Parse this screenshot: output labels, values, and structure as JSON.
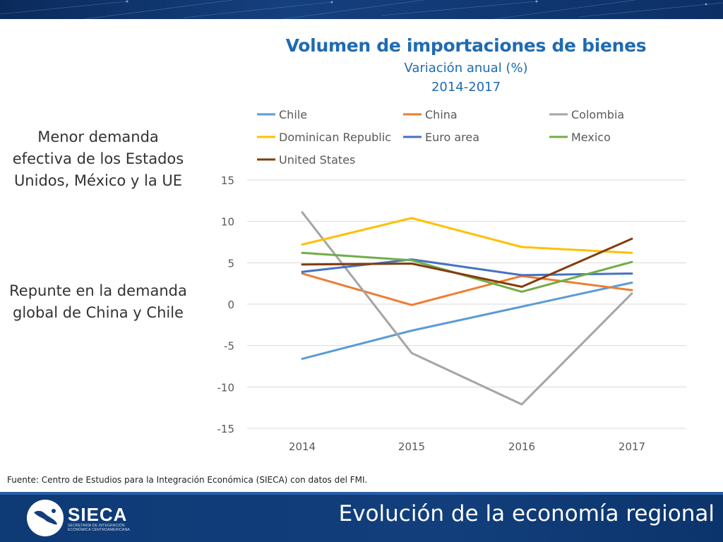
{
  "slide": {
    "title": "Evolución de la economía regional",
    "source": "Fuente: Centro de Estudios para la Integración Económica (SIECA) con datos del FMI.",
    "note_1": "Menor demanda efectiva de los Estados Unidos, México y la UE",
    "note_2": "Repunte en la demanda global de China y Chile"
  },
  "logo": {
    "name": "SIECA",
    "subtitle": "SECRETARÍA DE INTEGRACIÓN ECONÓMICA CENTROAMERICANA"
  },
  "colors": {
    "band": "#0e3a76",
    "title": "#1f6bb2"
  },
  "chart_data": {
    "type": "line",
    "title": "Volumen de importaciones de bienes",
    "subtitle": "Variación anual (%)",
    "period": "2014-2017",
    "x": [
      "2014",
      "2015",
      "2016",
      "2017"
    ],
    "ylim": [
      -15,
      15
    ],
    "yticks": [
      15,
      10,
      5,
      0,
      -5,
      -10,
      -15
    ],
    "grid": true,
    "legend_position": "top",
    "series": [
      {
        "name": "Chile",
        "color": "#5b9bd5",
        "values": [
          -6.6,
          -3.2,
          -0.3,
          2.6
        ]
      },
      {
        "name": "China",
        "color": "#ed7d31",
        "values": [
          3.7,
          -0.1,
          3.4,
          1.7
        ]
      },
      {
        "name": "Colombia",
        "color": "#a5a5a5",
        "values": [
          11.1,
          -5.9,
          -12.1,
          1.3
        ]
      },
      {
        "name": "Dominican Republic",
        "color": "#ffc000",
        "values": [
          7.2,
          10.4,
          6.9,
          6.2
        ]
      },
      {
        "name": "Euro area",
        "color": "#4472c4",
        "values": [
          3.9,
          5.4,
          3.5,
          3.7
        ]
      },
      {
        "name": "Mexico",
        "color": "#70ad47",
        "values": [
          6.2,
          5.3,
          1.5,
          5.1
        ]
      },
      {
        "name": "United States",
        "color": "#843c0c",
        "values": [
          4.8,
          4.9,
          2.1,
          7.9
        ]
      }
    ]
  }
}
